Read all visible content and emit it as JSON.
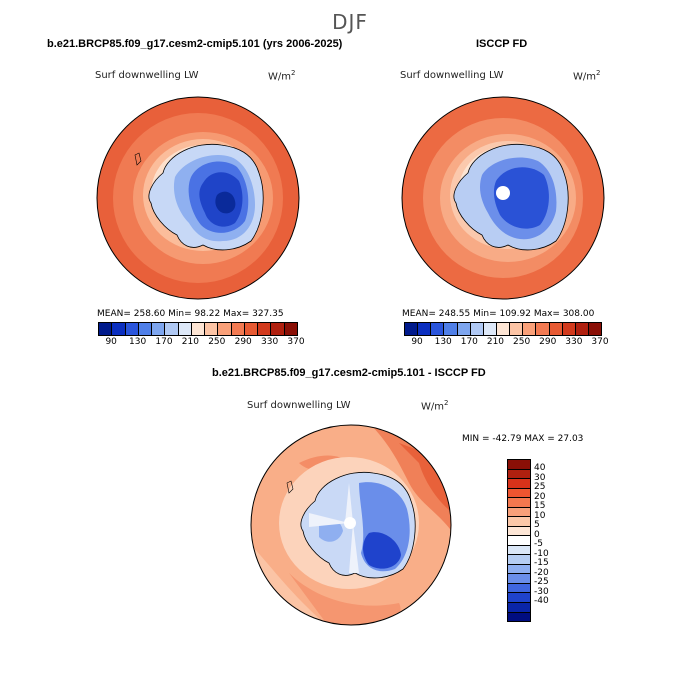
{
  "season": "DJF",
  "panels": {
    "model": {
      "title": "b.e21.BRCP85.f09_g17.cesm2-cmip5.101 (yrs 2006-2025)",
      "variable": "Surf downwelling LW",
      "units_base": "W/m",
      "units_exp": "2",
      "stats": "MEAN= 258.60   Min=   98.22   Max= 327.35"
    },
    "obs": {
      "title": "ISCCP FD",
      "variable": "Surf downwelling LW",
      "units_base": "W/m",
      "units_exp": "2",
      "stats": "MEAN= 248.55   Min=  109.92   Max= 308.00"
    },
    "diff": {
      "title": "b.e21.BRCP85.f09_g17.cesm2-cmip5.101 - ISCCP FD",
      "variable": "Surf downwelling LW",
      "units_base": "W/m",
      "units_exp": "2",
      "stats": "MIN = -42.79  MAX =  27.03"
    }
  },
  "colorbar_abs": {
    "colors": [
      "#001a8c",
      "#0b2fc0",
      "#2a55dc",
      "#4f7fe8",
      "#7ea6ef",
      "#b0c9f4",
      "#dde8f8",
      "#fde5d4",
      "#fcc4a5",
      "#f9a079",
      "#f27a52",
      "#e75a33",
      "#d23a1d",
      "#b0200f",
      "#8a0f06"
    ],
    "tick_labels": [
      "90",
      "130",
      "170",
      "210",
      "250",
      "290",
      "330",
      "370"
    ]
  },
  "colorbar_diff": {
    "colors": [
      "#8a0f06",
      "#b0200f",
      "#d8321a",
      "#ee5530",
      "#f4784f",
      "#f8a07a",
      "#fbc8a9",
      "#fde6d6",
      "#ffffff",
      "#dbe7f7",
      "#b6cdf2",
      "#8faff0",
      "#6a8eea",
      "#3f66e0",
      "#1f43cc",
      "#0a25a8",
      "#000d80"
    ],
    "tick_labels": [
      "40",
      "30",
      "25",
      "20",
      "15",
      "10",
      "5",
      "0",
      "-5",
      "-10",
      "-15",
      "-20",
      "-25",
      "-30",
      "-40"
    ]
  }
}
